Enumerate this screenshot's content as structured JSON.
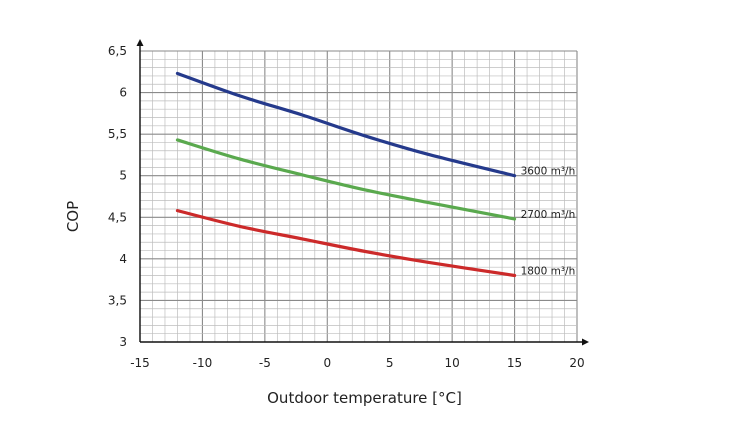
{
  "chart_data": {
    "type": "line",
    "title": "",
    "xlabel": "Outdoor temperature [°C]",
    "ylabel": "COP",
    "xlim": [
      -15,
      20
    ],
    "ylim": [
      3,
      6.5
    ],
    "x_ticks": [
      -15,
      -10,
      -5,
      0,
      5,
      10,
      15,
      20
    ],
    "x_tick_labels": [
      "-15",
      "-10",
      "-5",
      "0",
      "5",
      "10",
      "15",
      "20"
    ],
    "y_ticks": [
      3,
      3.5,
      4,
      4.5,
      5,
      5.5,
      6,
      6.5
    ],
    "y_tick_labels": [
      "3",
      "3,5",
      "4",
      "4,5",
      "5",
      "5,5",
      "6",
      "6,5"
    ],
    "grid": true,
    "minor_grid_step_x": 1,
    "minor_grid_step_y": 0.1,
    "x": [
      -12,
      -7,
      -2,
      3,
      8,
      15
    ],
    "series": [
      {
        "name": "3600 m³/h",
        "label": "3600 m³/h",
        "color": "#253a8c",
        "values": [
          6.23,
          5.96,
          5.73,
          5.48,
          5.26,
          5.0
        ]
      },
      {
        "name": "2700 m³/h",
        "label": "2700 m³/h",
        "color": "#5aa94e",
        "values": [
          5.43,
          5.2,
          5.01,
          4.83,
          4.68,
          4.48
        ]
      },
      {
        "name": "1800 m³/h",
        "label": "1800 m³/h",
        "color": "#cc2a2a",
        "values": [
          4.58,
          4.39,
          4.24,
          4.09,
          3.96,
          3.8
        ]
      }
    ]
  }
}
